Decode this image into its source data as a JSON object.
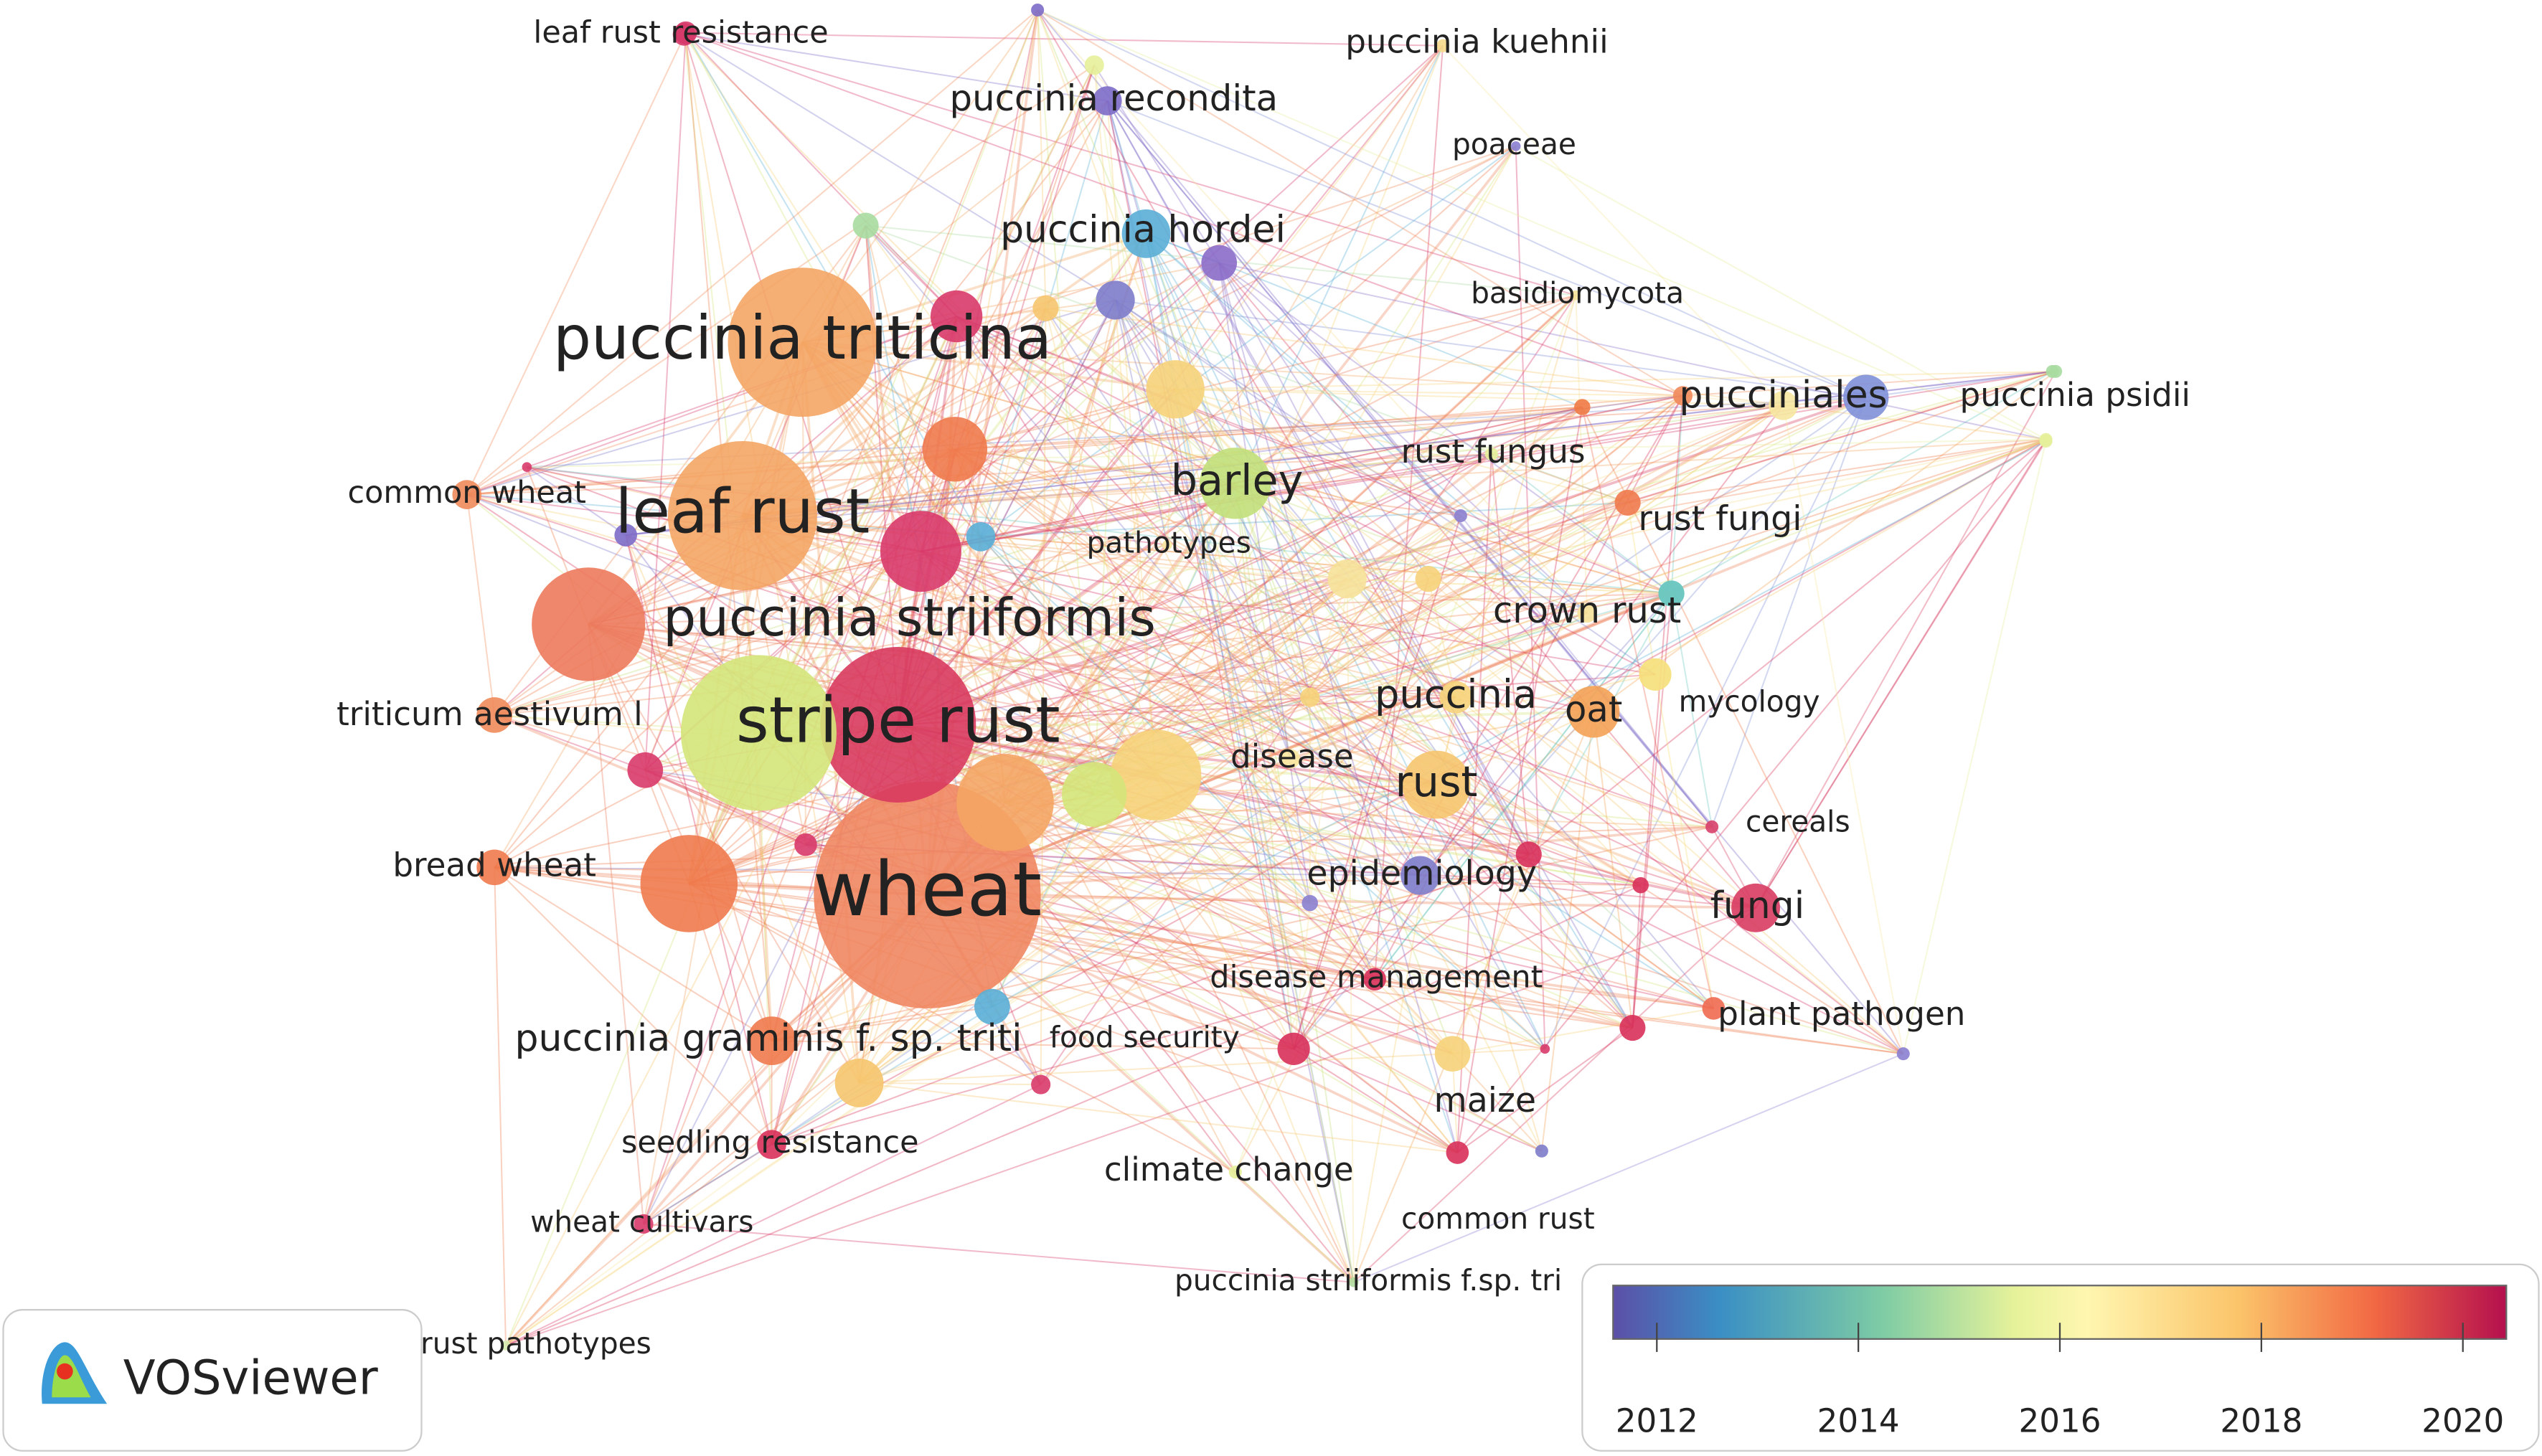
{
  "nodes": [
    {
      "label": "leaf rust resistance",
      "color": "#d63a6a"
    },
    {
      "label": "puccinia recondita",
      "color": "#7d6bc8"
    },
    {
      "label": "puccinia kuehnii",
      "color": "#f5d98a"
    },
    {
      "label": "poaceae",
      "color": "#8a7fd0"
    },
    {
      "label": "puccinia hordei",
      "color": "#5aaed6"
    },
    {
      "label": "basidiomycota",
      "color": "#f4e39a"
    },
    {
      "label": "puccinia triticina",
      "color": "#f4a564"
    },
    {
      "label": "pucciniales",
      "color": "#8090d8"
    },
    {
      "label": "puccinia psidii",
      "color": "#a8dba0"
    },
    {
      "label": "rust fungus",
      "color": "#e6ef9a"
    },
    {
      "label": "barley",
      "color": "#c2e07a"
    },
    {
      "label": "common wheat",
      "color": "#f08a5a"
    },
    {
      "label": "leaf rust",
      "color": "#f4a564"
    },
    {
      "label": "rust fungi",
      "color": "#ef7a4c"
    },
    {
      "label": "pathotypes",
      "color": "#f8e7a0"
    },
    {
      "label": "puccinia striiformis",
      "color": "#ec7a5c"
    },
    {
      "label": "crown rust",
      "color": "#f5e19a"
    },
    {
      "label": "triticum aestivum l",
      "color": "#f08a5a"
    },
    {
      "label": "stripe rust",
      "color": "#d83a5e"
    },
    {
      "label": "puccinia",
      "color": "#f6d37a"
    },
    {
      "label": "oat",
      "color": "#f4a255"
    },
    {
      "label": "mycology",
      "color": "#6ec8c0"
    },
    {
      "label": "disease",
      "color": "#f8e8a0"
    },
    {
      "label": "rust",
      "color": "#f6c56e"
    },
    {
      "label": "cereals",
      "color": "#d8406a"
    },
    {
      "label": "bread wheat",
      "color": "#ef7a4c"
    },
    {
      "label": "wheat",
      "color": "#ef8660"
    },
    {
      "label": "epidemiology",
      "color": "#7d7ccb"
    },
    {
      "label": "fungi",
      "color": "#d83c62"
    },
    {
      "label": "disease management",
      "color": "#d8305a"
    },
    {
      "label": "plant pathogen",
      "color": "#ef6a50"
    },
    {
      "label": "puccinia graminis f. sp. triti",
      "color": "#ef7a4c"
    },
    {
      "label": "food security",
      "color": "#d83a6a"
    },
    {
      "label": "maize",
      "color": "#f6d37a"
    },
    {
      "label": "seedling resistance",
      "color": "#d8305a"
    },
    {
      "label": "climate change",
      "color": "#e6ef9a"
    },
    {
      "label": "wheat cultivars",
      "color": "#d83a6a"
    },
    {
      "label": "common rust",
      "color": "#7d7ccb"
    },
    {
      "label": "puccinia striiformis f.sp. tri",
      "color": "#b0dca0"
    },
    {
      "label": "leaf rust pathotypes",
      "color": "#d6ecb0"
    }
  ],
  "logo": {
    "text": "VOSviewer"
  },
  "legend": {
    "ticks": [
      2012,
      2014,
      2016,
      2018,
      2020
    ]
  }
}
